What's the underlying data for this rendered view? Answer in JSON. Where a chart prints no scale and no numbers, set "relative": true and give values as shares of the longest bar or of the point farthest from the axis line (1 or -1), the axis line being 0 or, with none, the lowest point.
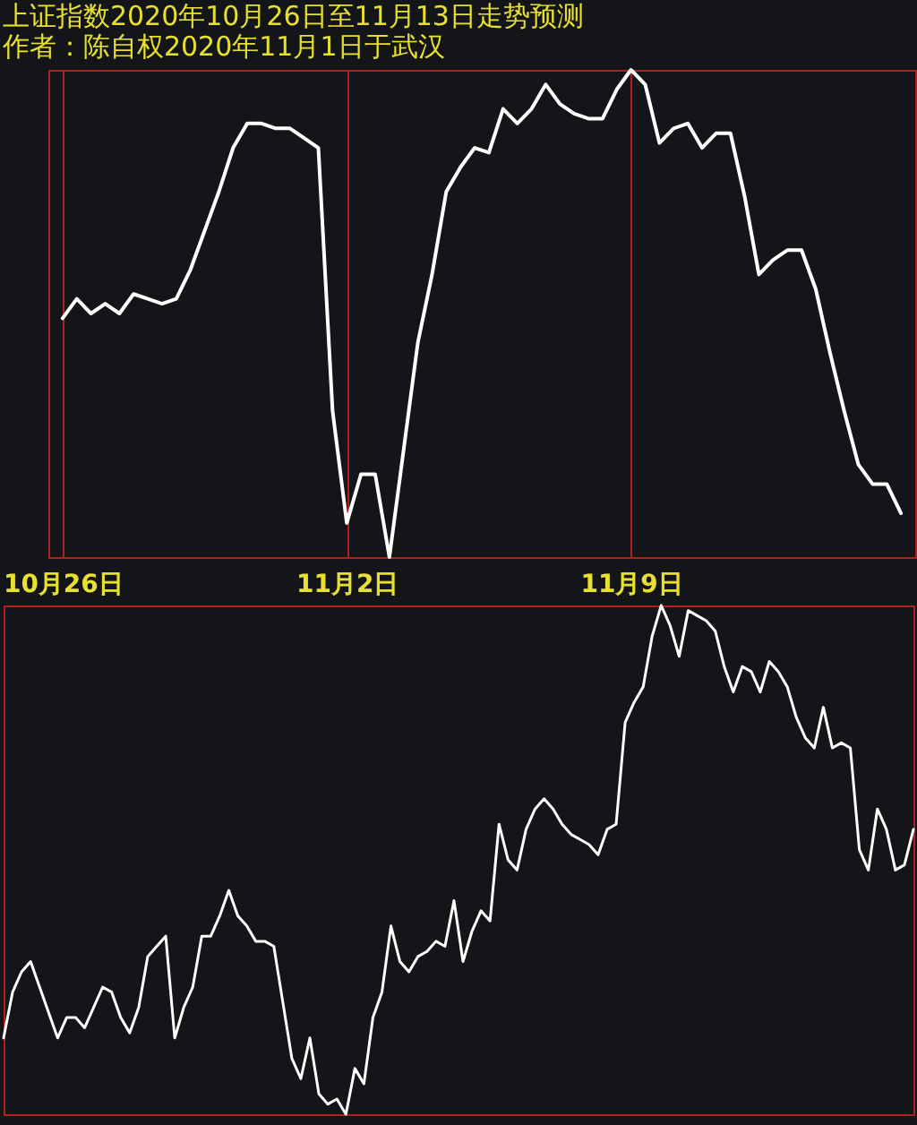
{
  "chart_data": [
    {
      "type": "line",
      "title": "上证指数2020年10月26日至11月13日走势预测",
      "subtitle": "作者：陈自权2020年11月1日于武汉",
      "relative": true,
      "color": "#ffffff",
      "grid": "x",
      "categories": [
        "10月26日",
        null,
        null,
        null,
        null,
        null,
        null,
        null,
        null,
        null,
        null,
        null,
        null,
        null,
        null,
        null,
        null,
        null,
        null,
        null,
        "11月2日",
        null,
        null,
        null,
        null,
        null,
        null,
        null,
        null,
        null,
        null,
        null,
        null,
        null,
        null,
        null,
        null,
        null,
        null,
        null,
        "11月9日",
        null,
        null,
        null,
        null,
        null,
        null,
        null,
        null,
        null,
        null,
        null,
        null,
        null,
        null,
        null,
        null,
        null,
        null,
        null
      ],
      "values": [
        0.49,
        0.53,
        0.5,
        0.52,
        0.5,
        0.54,
        0.53,
        0.52,
        0.53,
        0.59,
        0.67,
        0.75,
        0.84,
        0.89,
        0.89,
        0.88,
        0.88,
        0.86,
        0.84,
        0.3,
        0.07,
        0.17,
        0.17,
        0,
        0.22,
        0.44,
        0.58,
        0.75,
        0.8,
        0.84,
        0.83,
        0.92,
        0.89,
        0.92,
        0.97,
        0.93,
        0.91,
        0.9,
        0.9,
        0.96,
        1,
        0.97,
        0.85,
        0.88,
        0.89,
        0.84,
        0.87,
        0.87,
        0.74,
        0.58,
        0.61,
        0.63,
        0.63,
        0.55,
        0.42,
        0.3,
        0.19,
        0.15,
        0.15,
        0.09
      ]
    },
    {
      "type": "line",
      "relative": true,
      "color": "#ffffff",
      "categories": [
        null,
        null,
        null,
        null,
        null,
        null,
        null,
        null,
        null,
        null,
        null,
        null,
        null,
        null,
        null,
        null,
        null,
        null,
        null,
        null,
        null,
        null,
        null,
        null,
        null,
        null,
        null,
        null,
        null,
        null,
        null,
        null,
        null,
        null,
        null,
        null,
        null,
        null,
        null,
        null,
        null,
        null,
        null,
        null,
        null,
        null,
        null,
        null,
        null,
        null,
        null,
        null,
        null,
        null,
        null,
        null,
        null,
        null,
        null,
        null,
        null,
        null,
        null,
        null,
        null,
        null,
        null,
        null,
        null,
        null,
        null,
        null,
        null,
        null,
        null,
        null,
        null,
        null,
        null,
        null,
        null,
        null,
        null,
        null,
        null,
        null,
        null,
        null,
        null,
        null,
        null,
        null,
        null,
        null,
        null,
        null,
        null,
        null,
        null,
        null,
        null,
        null
      ],
      "values": [
        0.15,
        0.24,
        0.28,
        0.3,
        0.25,
        0.2,
        0.15,
        0.19,
        0.19,
        0.17,
        0.21,
        0.25,
        0.24,
        0.19,
        0.16,
        0.21,
        0.31,
        0.33,
        0.35,
        0.15,
        0.21,
        0.25,
        0.35,
        0.35,
        0.39,
        0.44,
        0.39,
        0.37,
        0.34,
        0.34,
        0.33,
        0.22,
        0.11,
        0.07,
        0.15,
        0.04,
        0.02,
        0.03,
        0,
        0.09,
        0.06,
        0.19,
        0.24,
        0.37,
        0.3,
        0.28,
        0.31,
        0.32,
        0.34,
        0.33,
        0.42,
        0.3,
        0.36,
        0.4,
        0.38,
        0.57,
        0.5,
        0.48,
        0.56,
        0.6,
        0.62,
        0.6,
        0.57,
        0.55,
        0.54,
        0.53,
        0.51,
        0.56,
        0.57,
        0.77,
        0.81,
        0.84,
        0.94,
        1,
        0.96,
        0.9,
        0.99,
        0.98,
        0.97,
        0.95,
        0.88,
        0.83,
        0.88,
        0.87,
        0.83,
        0.89,
        0.87,
        0.84,
        0.78,
        0.74,
        0.72,
        0.8,
        0.72,
        0.73,
        0.72,
        0.52,
        0.48,
        0.6,
        0.56,
        0.48,
        0.49,
        0.56
      ]
    }
  ]
}
